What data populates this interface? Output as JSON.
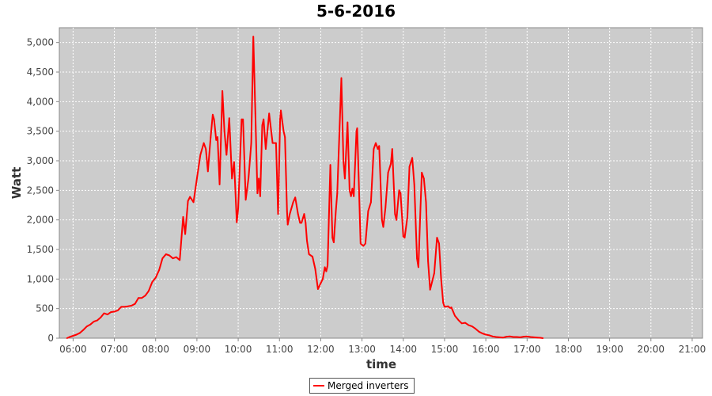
{
  "chart_data": {
    "type": "line",
    "title": "5-6-2016",
    "xlabel": "time",
    "ylabel": "Watt",
    "xlim": [
      "05:40",
      "21:15"
    ],
    "ylim": [
      0,
      5250
    ],
    "x_ticks": [
      "06:00",
      "07:00",
      "08:00",
      "09:00",
      "10:00",
      "11:00",
      "12:00",
      "13:00",
      "14:00",
      "15:00",
      "16:00",
      "17:00",
      "18:00",
      "19:00",
      "20:00",
      "21:00"
    ],
    "y_ticks": [
      "0",
      "500",
      "1,000",
      "1,500",
      "2,000",
      "2,500",
      "3,000",
      "3,500",
      "4,000",
      "4,500",
      "5,000"
    ],
    "y_tick_values": [
      0,
      500,
      1000,
      1500,
      2000,
      2500,
      3000,
      3500,
      4000,
      4500,
      5000
    ],
    "grid": true,
    "legend_position": "bottom",
    "series": [
      {
        "name": "Merged inverters",
        "color": "#ff0000",
        "points": [
          [
            "05:51",
            0
          ],
          [
            "05:55",
            20
          ],
          [
            "06:00",
            40
          ],
          [
            "06:05",
            60
          ],
          [
            "06:10",
            90
          ],
          [
            "06:15",
            140
          ],
          [
            "06:20",
            200
          ],
          [
            "06:25",
            230
          ],
          [
            "06:30",
            280
          ],
          [
            "06:35",
            300
          ],
          [
            "06:40",
            350
          ],
          [
            "06:45",
            420
          ],
          [
            "06:50",
            400
          ],
          [
            "06:55",
            440
          ],
          [
            "07:00",
            450
          ],
          [
            "07:05",
            470
          ],
          [
            "07:10",
            530
          ],
          [
            "07:15",
            530
          ],
          [
            "07:20",
            540
          ],
          [
            "07:25",
            550
          ],
          [
            "07:30",
            580
          ],
          [
            "07:35",
            680
          ],
          [
            "07:40",
            680
          ],
          [
            "07:45",
            720
          ],
          [
            "07:50",
            800
          ],
          [
            "07:55",
            950
          ],
          [
            "08:00",
            1020
          ],
          [
            "08:05",
            1150
          ],
          [
            "08:10",
            1350
          ],
          [
            "08:15",
            1420
          ],
          [
            "08:20",
            1400
          ],
          [
            "08:25",
            1350
          ],
          [
            "08:30",
            1370
          ],
          [
            "08:35",
            1320
          ],
          [
            "08:40",
            2050
          ],
          [
            "08:43",
            1760
          ],
          [
            "08:47",
            2320
          ],
          [
            "08:50",
            2390
          ],
          [
            "08:55",
            2300
          ],
          [
            "09:00",
            2700
          ],
          [
            "09:05",
            3100
          ],
          [
            "09:10",
            3300
          ],
          [
            "09:13",
            3200
          ],
          [
            "09:16",
            2820
          ],
          [
            "09:20",
            3400
          ],
          [
            "09:23",
            3780
          ],
          [
            "09:25",
            3700
          ],
          [
            "09:28",
            3350
          ],
          [
            "09:30",
            3400
          ],
          [
            "09:33",
            2600
          ],
          [
            "09:37",
            4180
          ],
          [
            "09:40",
            3500
          ],
          [
            "09:43",
            3100
          ],
          [
            "09:47",
            3720
          ],
          [
            "09:51",
            2700
          ],
          [
            "09:54",
            2980
          ],
          [
            "09:58",
            1960
          ],
          [
            "10:00",
            2200
          ],
          [
            "10:05",
            3700
          ],
          [
            "10:07",
            3700
          ],
          [
            "10:11",
            2340
          ],
          [
            "10:15",
            2700
          ],
          [
            "10:19",
            3300
          ],
          [
            "10:22",
            5100
          ],
          [
            "10:25",
            3800
          ],
          [
            "10:28",
            2450
          ],
          [
            "10:30",
            2700
          ],
          [
            "10:32",
            2400
          ],
          [
            "10:35",
            3600
          ],
          [
            "10:37",
            3700
          ],
          [
            "10:40",
            3200
          ],
          [
            "10:45",
            3800
          ],
          [
            "10:50",
            3300
          ],
          [
            "10:55",
            3300
          ],
          [
            "10:58",
            2100
          ],
          [
            "11:01",
            3700
          ],
          [
            "11:02",
            3850
          ],
          [
            "11:06",
            3500
          ],
          [
            "11:08",
            3400
          ],
          [
            "11:11",
            2150
          ],
          [
            "11:12",
            1920
          ],
          [
            "11:15",
            2100
          ],
          [
            "11:20",
            2300
          ],
          [
            "11:23",
            2380
          ],
          [
            "11:27",
            2100
          ],
          [
            "11:30",
            1950
          ],
          [
            "11:32",
            1950
          ],
          [
            "11:36",
            2100
          ],
          [
            "11:38",
            1950
          ],
          [
            "11:40",
            1650
          ],
          [
            "11:43",
            1420
          ],
          [
            "11:48",
            1380
          ],
          [
            "11:52",
            1170
          ],
          [
            "11:56",
            830
          ],
          [
            "12:00",
            930
          ],
          [
            "12:03",
            1000
          ],
          [
            "12:06",
            1200
          ],
          [
            "12:08",
            1130
          ],
          [
            "12:10",
            1230
          ],
          [
            "12:14",
            2930
          ],
          [
            "12:17",
            1700
          ],
          [
            "12:19",
            1620
          ],
          [
            "12:22",
            2150
          ],
          [
            "12:24",
            2450
          ],
          [
            "12:30",
            4400
          ],
          [
            "12:33",
            3000
          ],
          [
            "12:35",
            2700
          ],
          [
            "12:39",
            3650
          ],
          [
            "12:42",
            2500
          ],
          [
            "12:44",
            2400
          ],
          [
            "12:46",
            2530
          ],
          [
            "12:48",
            2400
          ],
          [
            "12:52",
            3500
          ],
          [
            "12:53",
            3550
          ],
          [
            "12:55",
            2800
          ],
          [
            "12:58",
            1600
          ],
          [
            "13:02",
            1560
          ],
          [
            "13:05",
            1600
          ],
          [
            "13:09",
            2150
          ],
          [
            "13:13",
            2300
          ],
          [
            "13:17",
            3200
          ],
          [
            "13:20",
            3300
          ],
          [
            "13:23",
            3200
          ],
          [
            "13:25",
            3250
          ],
          [
            "13:29",
            2000
          ],
          [
            "13:31",
            1880
          ],
          [
            "13:34",
            2200
          ],
          [
            "13:38",
            2800
          ],
          [
            "13:42",
            2950
          ],
          [
            "13:44",
            3200
          ],
          [
            "13:48",
            2100
          ],
          [
            "13:50",
            2000
          ],
          [
            "13:54",
            2500
          ],
          [
            "13:56",
            2450
          ],
          [
            "14:00",
            1720
          ],
          [
            "14:02",
            1700
          ],
          [
            "14:06",
            2050
          ],
          [
            "14:09",
            2900
          ],
          [
            "14:13",
            3050
          ],
          [
            "14:16",
            2600
          ],
          [
            "14:20",
            1350
          ],
          [
            "14:22",
            1200
          ],
          [
            "14:25",
            2200
          ],
          [
            "14:27",
            2800
          ],
          [
            "14:30",
            2700
          ],
          [
            "14:33",
            2300
          ],
          [
            "14:36",
            1300
          ],
          [
            "14:39",
            820
          ],
          [
            "14:43",
            1000
          ],
          [
            "14:45",
            1100
          ],
          [
            "14:49",
            1700
          ],
          [
            "14:52",
            1600
          ],
          [
            "14:55",
            1000
          ],
          [
            "14:58",
            600
          ],
          [
            "15:00",
            530
          ],
          [
            "15:05",
            540
          ],
          [
            "15:08",
            510
          ],
          [
            "15:10",
            520
          ],
          [
            "15:15",
            380
          ],
          [
            "15:20",
            310
          ],
          [
            "15:25",
            250
          ],
          [
            "15:30",
            260
          ],
          [
            "15:35",
            220
          ],
          [
            "15:40",
            200
          ],
          [
            "15:45",
            160
          ],
          [
            "15:50",
            110
          ],
          [
            "15:55",
            80
          ],
          [
            "16:00",
            60
          ],
          [
            "16:05",
            50
          ],
          [
            "16:10",
            30
          ],
          [
            "16:15",
            20
          ],
          [
            "16:20",
            15
          ],
          [
            "16:25",
            10
          ],
          [
            "16:30",
            25
          ],
          [
            "16:35",
            30
          ],
          [
            "16:40",
            20
          ],
          [
            "16:45",
            20
          ],
          [
            "16:50",
            15
          ],
          [
            "16:55",
            25
          ],
          [
            "17:00",
            30
          ],
          [
            "17:05",
            20
          ],
          [
            "17:10",
            15
          ],
          [
            "17:15",
            10
          ],
          [
            "17:20",
            5
          ],
          [
            "17:23",
            0
          ]
        ]
      }
    ]
  }
}
